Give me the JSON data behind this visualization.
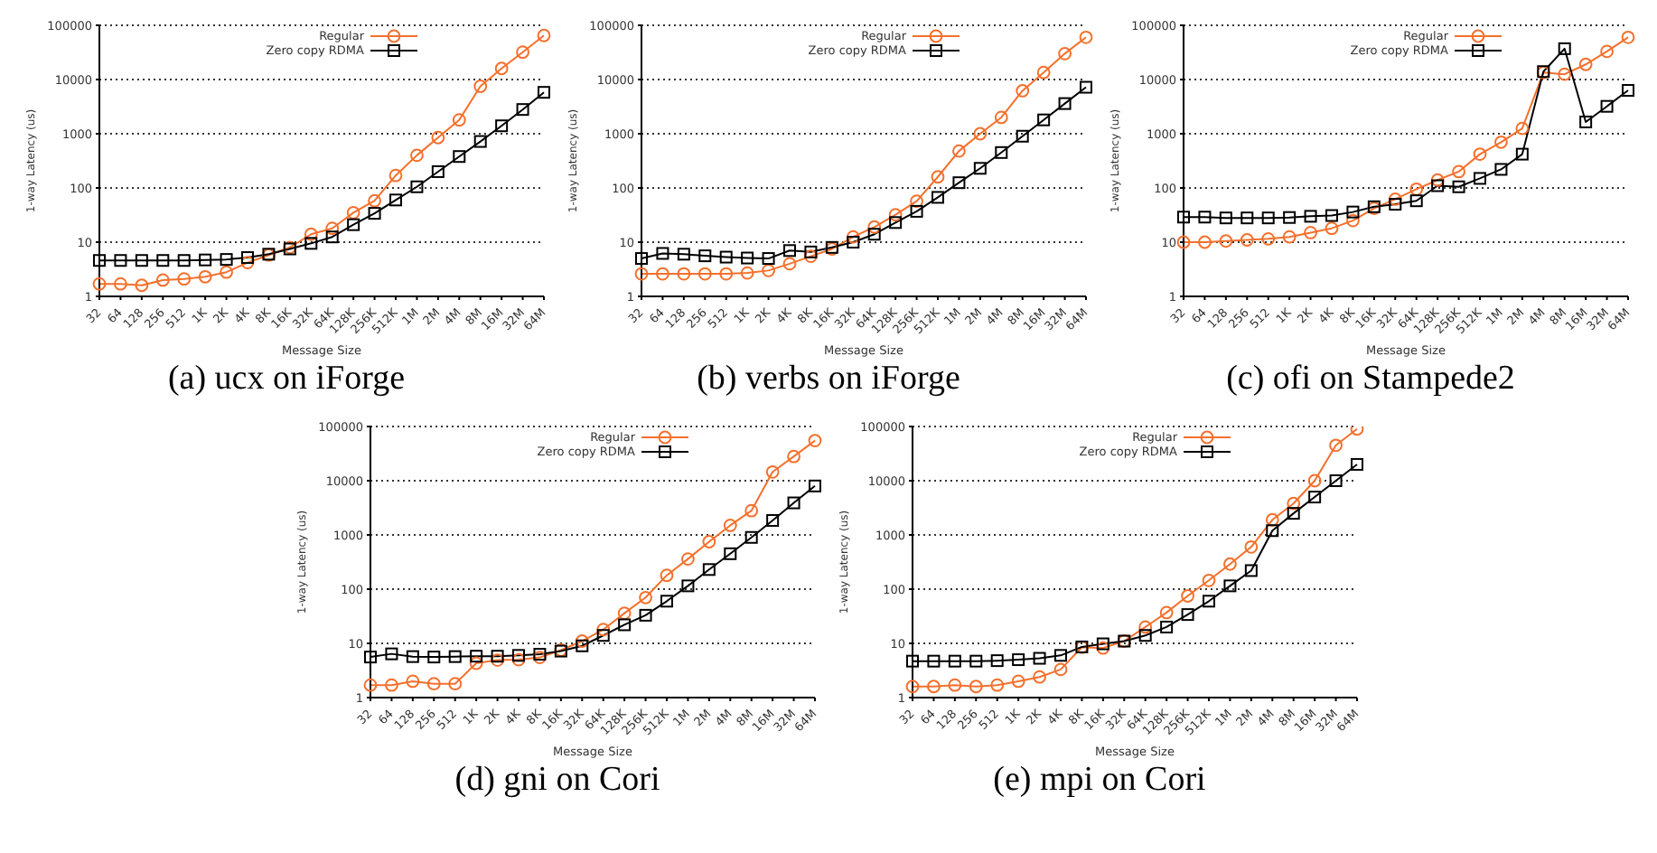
{
  "chart_data": [
    {
      "type": "line",
      "title": "(a) ucx on iForge",
      "xlabel": "Message Size",
      "ylabel": "1-way Latency (us)",
      "categories": [
        "32",
        "64",
        "128",
        "256",
        "512",
        "1K",
        "2K",
        "4K",
        "8K",
        "16K",
        "32K",
        "64K",
        "128K",
        "256K",
        "512K",
        "1M",
        "2M",
        "4M",
        "8M",
        "16M",
        "32M",
        "64M"
      ],
      "log": true,
      "grid": "y",
      "legend": "top",
      "ylim": [
        1,
        100000
      ],
      "yticks": [
        1,
        10,
        100,
        1000,
        10000,
        100000
      ],
      "series": [
        {
          "name": "Regular",
          "color": "#f4702c",
          "marker": "circle",
          "values": [
            1.7,
            1.7,
            1.6,
            2.0,
            2.1,
            2.3,
            2.8,
            4.2,
            5.8,
            8,
            14,
            18,
            35,
            58,
            170,
            400,
            850,
            1800,
            7500,
            16000,
            32000,
            65000
          ]
        },
        {
          "name": "Zero copy RDMA",
          "color": "#000000",
          "marker": "square",
          "values": [
            4.6,
            4.6,
            4.6,
            4.6,
            4.6,
            4.7,
            4.8,
            5.2,
            6,
            7.5,
            9.5,
            12.5,
            21,
            34,
            60,
            105,
            200,
            380,
            720,
            1400,
            2800,
            5800
          ]
        }
      ]
    },
    {
      "type": "line",
      "title": "(b) verbs on iForge",
      "xlabel": "Message Size",
      "ylabel": "1-way Latency (us)",
      "categories": [
        "32",
        "64",
        "128",
        "256",
        "512",
        "1K",
        "2K",
        "4K",
        "8K",
        "16K",
        "32K",
        "64K",
        "128K",
        "256K",
        "512K",
        "1M",
        "2M",
        "4M",
        "8M",
        "16M",
        "32M",
        "64M"
      ],
      "log": true,
      "grid": "y",
      "legend": "top",
      "ylim": [
        1,
        100000
      ],
      "yticks": [
        1,
        10,
        100,
        1000,
        10000,
        100000
      ],
      "series": [
        {
          "name": "Regular",
          "color": "#f4702c",
          "marker": "circle",
          "values": [
            2.6,
            2.6,
            2.6,
            2.6,
            2.6,
            2.7,
            3,
            4,
            5.5,
            7.5,
            12.5,
            19,
            32,
            57,
            160,
            480,
            1000,
            2000,
            6200,
            13500,
            30000,
            60000
          ]
        },
        {
          "name": "Zero copy RDMA",
          "color": "#000000",
          "marker": "square",
          "values": [
            5,
            6.2,
            6,
            5.6,
            5.3,
            5.1,
            5,
            7,
            6.6,
            8,
            10,
            14,
            23,
            37,
            67,
            125,
            230,
            450,
            900,
            1800,
            3600,
            7200
          ]
        }
      ]
    },
    {
      "type": "line",
      "title": "(c) ofi on Stampede2",
      "xlabel": "Message Size",
      "ylabel": "1-way Latency (us)",
      "categories": [
        "32",
        "64",
        "128",
        "256",
        "512",
        "1K",
        "2K",
        "4K",
        "8K",
        "16K",
        "32K",
        "64K",
        "128K",
        "256K",
        "512K",
        "1M",
        "2M",
        "4M",
        "8M",
        "16M",
        "32M",
        "64M"
      ],
      "log": true,
      "grid": "y",
      "legend": "top",
      "ylim": [
        1,
        100000
      ],
      "yticks": [
        1,
        10,
        100,
        1000,
        10000,
        100000
      ],
      "series": [
        {
          "name": "Regular",
          "color": "#f4702c",
          "marker": "circle",
          "values": [
            10,
            10,
            10.5,
            11,
            11.5,
            12.5,
            15,
            18,
            25,
            42,
            62,
            95,
            140,
            200,
            420,
            700,
            1250,
            13500,
            12500,
            19000,
            33000,
            60000
          ]
        },
        {
          "name": "Zero copy RDMA",
          "color": "#000000",
          "marker": "square",
          "values": [
            29,
            29,
            28,
            28,
            28,
            28.5,
            30,
            31,
            36,
            45,
            50,
            58,
            110,
            105,
            150,
            220,
            420,
            14000,
            37000,
            1650,
            3200,
            6300
          ]
        }
      ]
    },
    {
      "type": "line",
      "title": "(d) gni on Cori",
      "xlabel": "Message Size",
      "ylabel": "1-way Latency (us)",
      "categories": [
        "32",
        "64",
        "128",
        "256",
        "512",
        "1K",
        "2K",
        "4K",
        "8K",
        "16K",
        "32K",
        "64K",
        "128K",
        "256K",
        "512K",
        "1M",
        "2M",
        "4M",
        "8M",
        "16M",
        "32M",
        "64M"
      ],
      "log": true,
      "grid": "y",
      "legend": "top",
      "ylim": [
        1,
        100000
      ],
      "yticks": [
        1,
        10,
        100,
        1000,
        10000,
        100000
      ],
      "series": [
        {
          "name": "Regular",
          "color": "#f4702c",
          "marker": "circle",
          "values": [
            1.7,
            1.7,
            2.0,
            1.8,
            1.8,
            4.3,
            4.9,
            5,
            5.5,
            7.5,
            11,
            18,
            36,
            70,
            180,
            360,
            750,
            1500,
            2800,
            14500,
            28000,
            55000
          ]
        },
        {
          "name": "Zero copy RDMA",
          "color": "#000000",
          "marker": "square",
          "values": [
            5.6,
            6.4,
            5.7,
            5.6,
            5.7,
            5.8,
            5.8,
            6,
            6.3,
            7.2,
            9,
            14,
            22,
            33,
            60,
            115,
            230,
            450,
            900,
            1850,
            3900,
            8000
          ]
        }
      ]
    },
    {
      "type": "line",
      "title": "(e) mpi on Cori",
      "xlabel": "Message Size",
      "ylabel": "1-way Latency (us)",
      "categories": [
        "32",
        "64",
        "128",
        "256",
        "512",
        "1K",
        "2K",
        "4K",
        "8K",
        "16K",
        "32K",
        "64K",
        "128K",
        "256K",
        "512K",
        "1M",
        "2M",
        "4M",
        "8M",
        "16M",
        "32M",
        "64M"
      ],
      "log": true,
      "grid": "y",
      "legend": "top",
      "ylim": [
        1,
        100000
      ],
      "yticks": [
        1,
        10,
        100,
        1000,
        10000,
        100000
      ],
      "series": [
        {
          "name": "Regular",
          "color": "#f4702c",
          "marker": "circle",
          "values": [
            1.6,
            1.6,
            1.7,
            1.6,
            1.7,
            2,
            2.4,
            3.3,
            8.5,
            8.2,
            11,
            20,
            37,
            75,
            145,
            290,
            600,
            1900,
            3800,
            10000,
            45000,
            90000
          ]
        },
        {
          "name": "Zero copy RDMA",
          "color": "#000000",
          "marker": "square",
          "values": [
            4.7,
            4.7,
            4.7,
            4.7,
            4.8,
            5,
            5.3,
            6,
            8.6,
            9.8,
            11,
            14,
            20,
            34,
            60,
            115,
            220,
            1200,
            2500,
            5000,
            10000,
            20000
          ]
        }
      ]
    }
  ]
}
